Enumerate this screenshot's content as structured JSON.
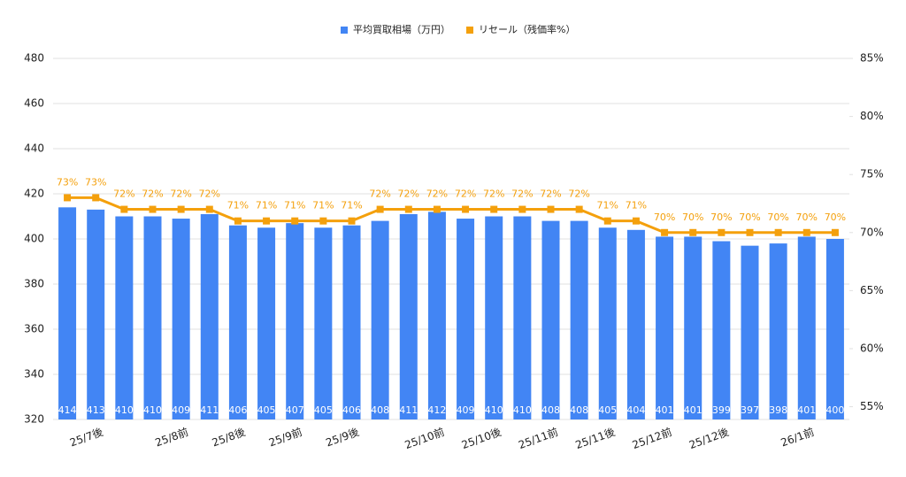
{
  "chart_data": {
    "type": "bar-line",
    "categories": [
      null,
      "25/7後",
      null,
      null,
      "25/8前",
      null,
      "25/8後",
      null,
      "25/9前",
      null,
      "25/9後",
      null,
      null,
      "25/10前",
      null,
      "25/10後",
      null,
      "25/11前",
      null,
      "25/11後",
      null,
      "25/12前",
      null,
      "25/12後",
      null,
      null,
      "26/1前",
      null
    ],
    "series": [
      {
        "name": "平均買取相場（万円）",
        "color": "#4285f4",
        "values": [
          414,
          413,
          410,
          410,
          409,
          411,
          406,
          405,
          407,
          405,
          406,
          408,
          411,
          412,
          409,
          410,
          410,
          408,
          408,
          405,
          404,
          401,
          401,
          399,
          397,
          398,
          401,
          400
        ]
      },
      {
        "name": "リセール（残価率%）",
        "color": "#f4a00c",
        "axis": "y2",
        "values": [
          73,
          73,
          72,
          72,
          72,
          72,
          71,
          71,
          71,
          71,
          71,
          72,
          72,
          72,
          72,
          72,
          72,
          72,
          72,
          71,
          71,
          70,
          70,
          70,
          70,
          70,
          70,
          70
        ],
        "value_labels": [
          "73%",
          "73%",
          "72%",
          "72%",
          "72%",
          "72%",
          "71%",
          "71%",
          "71%",
          "71%",
          "71%",
          "72%",
          "72%",
          "72%",
          "72%",
          "72%",
          "72%",
          "72%",
          "72%",
          "71%",
          "71%",
          "70%",
          "70%",
          "70%",
          "70%",
          "70%",
          "70%",
          "70%"
        ]
      }
    ],
    "ylim": [
      320,
      480
    ],
    "yticks": [
      320,
      340,
      360,
      380,
      400,
      420,
      440,
      460,
      480
    ],
    "y2lim": [
      53.9,
      85
    ],
    "y2ticks": [
      {
        "value": 55,
        "label": "55%"
      },
      {
        "value": 60,
        "label": "60%"
      },
      {
        "value": 65,
        "label": "65%"
      },
      {
        "value": 70,
        "label": "70%"
      },
      {
        "value": 75,
        "label": "75%"
      },
      {
        "value": 80,
        "label": "80%"
      },
      {
        "value": 85,
        "label": "85%"
      }
    ],
    "grid": true,
    "legend": "top"
  }
}
